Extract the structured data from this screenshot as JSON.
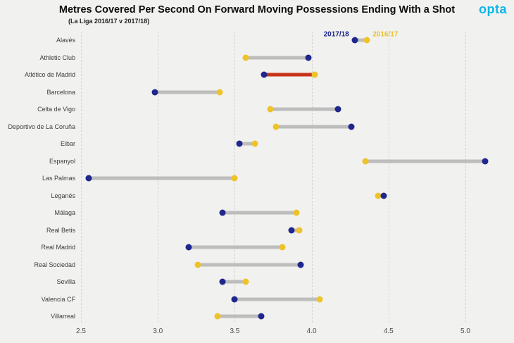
{
  "header": {
    "title": "Metres Covered Per Second On Forward Moving Possessions Ending With a Shot",
    "subtitle": "(La Liga 2016/17 v 2017/18)",
    "logo_text": "opta"
  },
  "chart_data": {
    "type": "dumbbell",
    "title": "Metres Covered Per Second On Forward Moving Possessions Ending With a Shot",
    "subtitle": "(La Liga 2016/17 v 2017/18)",
    "xlim": [
      2.5,
      5.2
    ],
    "xticks": [
      "2.5",
      "3.0",
      "3.5",
      "4.0",
      "4.5",
      "5.0"
    ],
    "grid": "vertical-dashed",
    "legend_position": "inline-first-row",
    "series": [
      {
        "name": "2017/18",
        "color": "#20268c"
      },
      {
        "name": "2016/17",
        "color": "#eec32a"
      }
    ],
    "connector_color": "#bdbdbd",
    "highlight_connector_color": "#c9351a",
    "teams": [
      {
        "name": "Alavés",
        "v2017_18": 4.28,
        "v2016_17": 4.36,
        "highlight": false
      },
      {
        "name": "Athletic Club",
        "v2017_18": 3.98,
        "v2016_17": 3.57,
        "highlight": false
      },
      {
        "name": "Atlético de Madrid",
        "v2017_18": 3.69,
        "v2016_17": 4.02,
        "highlight": true
      },
      {
        "name": "Barcelona",
        "v2017_18": 2.98,
        "v2016_17": 3.4,
        "highlight": false
      },
      {
        "name": "Celta de Vigo",
        "v2017_18": 4.17,
        "v2016_17": 3.73,
        "highlight": false
      },
      {
        "name": "Deportivo de La Coruña",
        "v2017_18": 4.26,
        "v2016_17": 3.77,
        "highlight": false
      },
      {
        "name": "Eibar",
        "v2017_18": 3.53,
        "v2016_17": 3.63,
        "highlight": false
      },
      {
        "name": "Espanyol",
        "v2017_18": 5.13,
        "v2016_17": 4.35,
        "highlight": false
      },
      {
        "name": "Las Palmas",
        "v2017_18": 2.55,
        "v2016_17": 3.5,
        "highlight": false
      },
      {
        "name": "Leganés",
        "v2017_18": 4.47,
        "v2016_17": 4.43,
        "highlight": false
      },
      {
        "name": "Málaga",
        "v2017_18": 3.42,
        "v2016_17": 3.9,
        "highlight": false
      },
      {
        "name": "Real Betis",
        "v2017_18": 3.87,
        "v2016_17": 3.92,
        "highlight": false
      },
      {
        "name": "Real Madrid",
        "v2017_18": 3.2,
        "v2016_17": 3.81,
        "highlight": false
      },
      {
        "name": "Real Sociedad",
        "v2017_18": 3.93,
        "v2016_17": 3.26,
        "highlight": false
      },
      {
        "name": "Sevilla",
        "v2017_18": 3.42,
        "v2016_17": 3.57,
        "highlight": false
      },
      {
        "name": "Valencia CF",
        "v2017_18": 3.5,
        "v2016_17": 4.05,
        "highlight": false
      },
      {
        "name": "Villarreal",
        "v2017_18": 3.67,
        "v2016_17": 3.39,
        "highlight": false
      }
    ]
  }
}
